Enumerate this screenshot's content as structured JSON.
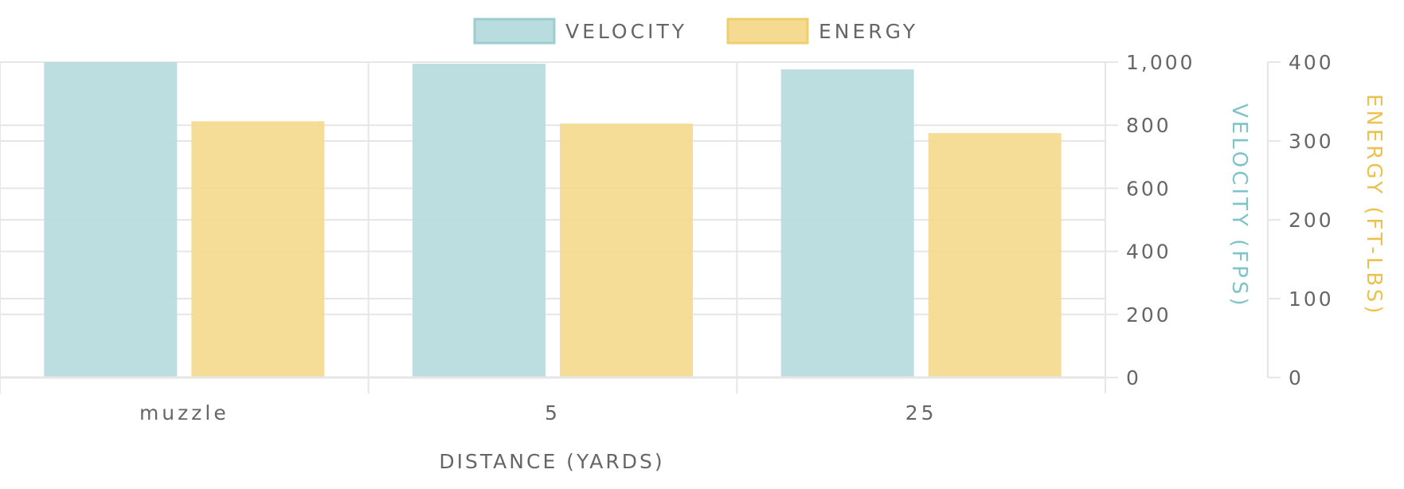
{
  "chart_data": {
    "type": "bar",
    "categories": [
      "muzzle",
      "5",
      "25"
    ],
    "series": [
      {
        "name": "VELOCITY",
        "axis": "left",
        "values": [
          1000,
          995,
          977
        ],
        "color": "#b9dcdf",
        "stroke": "#9ccdd1"
      },
      {
        "name": "ENERGY",
        "axis": "right",
        "values": [
          325,
          322,
          310
        ],
        "color": "#f4db91",
        "stroke": "#efcf6c"
      }
    ],
    "xlabel": "DISTANCE (YARDS)",
    "y_axes": [
      {
        "label": "VELOCITY (FPS)",
        "ylim": [
          0,
          1000
        ],
        "ticks": [
          0,
          200,
          400,
          600,
          800,
          1000
        ],
        "tick_labels": [
          "0",
          "200",
          "400",
          "600",
          "800",
          "1,000"
        ],
        "color": "#7fc4c8"
      },
      {
        "label": "ENERGY (FT-LBS)",
        "ylim": [
          0,
          400
        ],
        "ticks": [
          0,
          100,
          200,
          300,
          400
        ],
        "tick_labels": [
          "0",
          "100",
          "200",
          "300",
          "400"
        ],
        "color": "#ecc24d"
      }
    ],
    "legend": "top-center",
    "grid": true
  }
}
